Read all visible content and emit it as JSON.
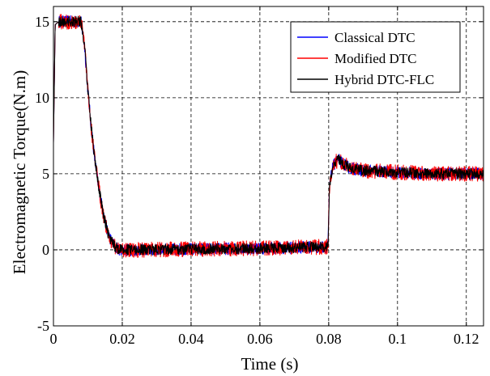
{
  "chart_data": {
    "type": "line",
    "title": "",
    "xlabel": "Time (s)",
    "ylabel": "Electromagnetic  Torque(N.m)",
    "xlim": [
      0,
      0.125
    ],
    "ylim": [
      -5,
      16
    ],
    "x_ticks": [
      0,
      0.02,
      0.04,
      0.06,
      0.08,
      0.1,
      0.12
    ],
    "x_tick_labels": [
      "0",
      "0.02",
      "0.04",
      "0.06",
      "0.08",
      "0.1",
      "0.12"
    ],
    "y_ticks": [
      -5,
      0,
      5,
      10,
      15
    ],
    "y_tick_labels": [
      "-5",
      "0",
      "5",
      "10",
      "15"
    ],
    "grid": true,
    "grid_style": "dashed",
    "legend_position": "top-right",
    "series": [
      {
        "name": "Classical DTC",
        "color": "#0000ff",
        "points": [
          [
            0,
            7
          ],
          [
            0.0005,
            14.8
          ],
          [
            0.0015,
            15.0
          ],
          [
            0.008,
            15.0
          ],
          [
            0.009,
            13.5
          ],
          [
            0.01,
            10.5
          ],
          [
            0.011,
            8.0
          ],
          [
            0.012,
            6.0
          ],
          [
            0.013,
            4.3
          ],
          [
            0.014,
            3.0
          ],
          [
            0.015,
            1.8
          ],
          [
            0.016,
            1.0
          ],
          [
            0.017,
            0.5
          ],
          [
            0.018,
            0.2
          ],
          [
            0.019,
            0.05
          ],
          [
            0.02,
            0.0
          ],
          [
            0.025,
            0.0
          ],
          [
            0.04,
            0.05
          ],
          [
            0.06,
            0.1
          ],
          [
            0.0798,
            0.2
          ],
          [
            0.0802,
            4.0
          ],
          [
            0.081,
            5.3
          ],
          [
            0.082,
            5.8
          ],
          [
            0.083,
            5.9
          ],
          [
            0.084,
            5.7
          ],
          [
            0.086,
            5.4
          ],
          [
            0.09,
            5.2
          ],
          [
            0.1,
            5.1
          ],
          [
            0.11,
            5.0
          ],
          [
            0.125,
            5.0
          ]
        ],
        "ripple": 0.4
      },
      {
        "name": "Modified DTC",
        "color": "#ff0000",
        "points": [
          [
            0,
            7
          ],
          [
            0.0005,
            14.8
          ],
          [
            0.0015,
            15.0
          ],
          [
            0.008,
            15.0
          ],
          [
            0.009,
            13.5
          ],
          [
            0.01,
            10.5
          ],
          [
            0.011,
            8.0
          ],
          [
            0.012,
            6.0
          ],
          [
            0.013,
            4.3
          ],
          [
            0.014,
            3.0
          ],
          [
            0.015,
            1.8
          ],
          [
            0.016,
            1.0
          ],
          [
            0.017,
            0.5
          ],
          [
            0.018,
            0.2
          ],
          [
            0.019,
            0.05
          ],
          [
            0.02,
            0.0
          ],
          [
            0.025,
            0.0
          ],
          [
            0.04,
            0.05
          ],
          [
            0.06,
            0.1
          ],
          [
            0.0798,
            0.2
          ],
          [
            0.0802,
            4.0
          ],
          [
            0.081,
            5.3
          ],
          [
            0.082,
            5.8
          ],
          [
            0.083,
            5.9
          ],
          [
            0.084,
            5.7
          ],
          [
            0.086,
            5.4
          ],
          [
            0.09,
            5.2
          ],
          [
            0.1,
            5.1
          ],
          [
            0.11,
            5.0
          ],
          [
            0.125,
            5.0
          ]
        ],
        "ripple": 0.5
      },
      {
        "name": "Hybrid DTC-FLC",
        "color": "#000000",
        "points": [
          [
            0,
            7
          ],
          [
            0.0005,
            14.8
          ],
          [
            0.0015,
            15.0
          ],
          [
            0.008,
            15.0
          ],
          [
            0.009,
            13.5
          ],
          [
            0.01,
            10.5
          ],
          [
            0.011,
            8.0
          ],
          [
            0.012,
            6.0
          ],
          [
            0.013,
            4.3
          ],
          [
            0.014,
            3.0
          ],
          [
            0.015,
            1.8
          ],
          [
            0.016,
            1.0
          ],
          [
            0.017,
            0.5
          ],
          [
            0.018,
            0.2
          ],
          [
            0.019,
            0.05
          ],
          [
            0.02,
            0.0
          ],
          [
            0.025,
            0.0
          ],
          [
            0.04,
            0.05
          ],
          [
            0.06,
            0.1
          ],
          [
            0.0798,
            0.2
          ],
          [
            0.0802,
            4.0
          ],
          [
            0.081,
            5.3
          ],
          [
            0.082,
            5.8
          ],
          [
            0.083,
            5.9
          ],
          [
            0.084,
            5.7
          ],
          [
            0.086,
            5.4
          ],
          [
            0.09,
            5.2
          ],
          [
            0.1,
            5.1
          ],
          [
            0.11,
            5.0
          ],
          [
            0.125,
            5.0
          ]
        ],
        "ripple": 0.35
      }
    ]
  }
}
